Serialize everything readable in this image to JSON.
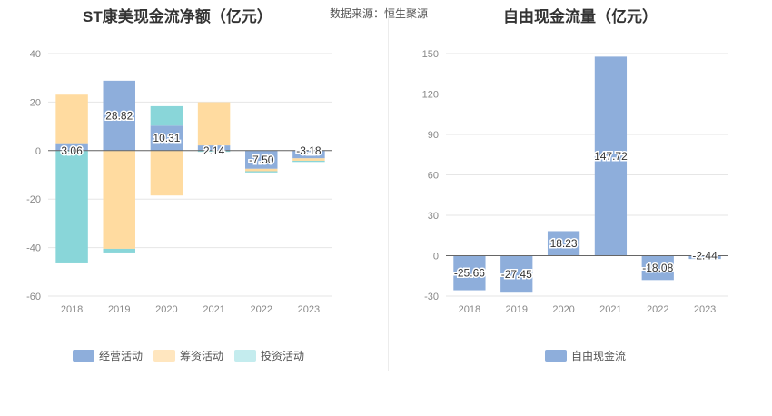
{
  "source_label": "数据来源：恒生聚源",
  "colors": {
    "operating": "#8eaedb",
    "financing": "#ffdba0",
    "investing": "#89d6d9",
    "investing_legend": "#c4ecee",
    "free_cash_flow": "#8eaedb",
    "grid": "#e6e6e6",
    "axis": "#666666"
  },
  "chart_data": [
    {
      "type": "bar",
      "stacked": true,
      "title": "ST康美现金流净额（亿元）",
      "categories": [
        "2018",
        "2019",
        "2020",
        "2021",
        "2022",
        "2023"
      ],
      "ylim": [
        -60,
        40
      ],
      "yticks": [
        40,
        20,
        0,
        -20,
        -40,
        -60
      ],
      "series": [
        {
          "name": "经营活动",
          "values": [
            3.06,
            28.82,
            10.31,
            2.14,
            -7.5,
            -3.18
          ],
          "labels": [
            "3.06",
            "28.82",
            "10.31",
            "2.14",
            "-7.50",
            "-3.18"
          ]
        },
        {
          "name": "筹资活动",
          "values": [
            20.0,
            -40.5,
            -18.5,
            17.8,
            -1.0,
            -1.0
          ]
        },
        {
          "name": "投资活动",
          "values": [
            -46.5,
            -1.5,
            8.0,
            -0.5,
            -0.5,
            -0.5
          ]
        }
      ],
      "legend": "bottom",
      "grid": true
    },
    {
      "type": "bar",
      "title": "自由现金流量（亿元）",
      "categories": [
        "2018",
        "2019",
        "2020",
        "2021",
        "2022",
        "2023"
      ],
      "ylim": [
        -30,
        150
      ],
      "yticks": [
        150,
        120,
        90,
        60,
        30,
        0,
        -30
      ],
      "series": [
        {
          "name": "自由现金流",
          "values": [
            -25.66,
            -27.45,
            18.23,
            147.72,
            -18.08,
            -2.44
          ],
          "labels": [
            "-25.66",
            "-27.45",
            "18.23",
            "147.72",
            "-18.08",
            "-2.44"
          ]
        }
      ],
      "legend": "bottom",
      "grid": true
    }
  ]
}
